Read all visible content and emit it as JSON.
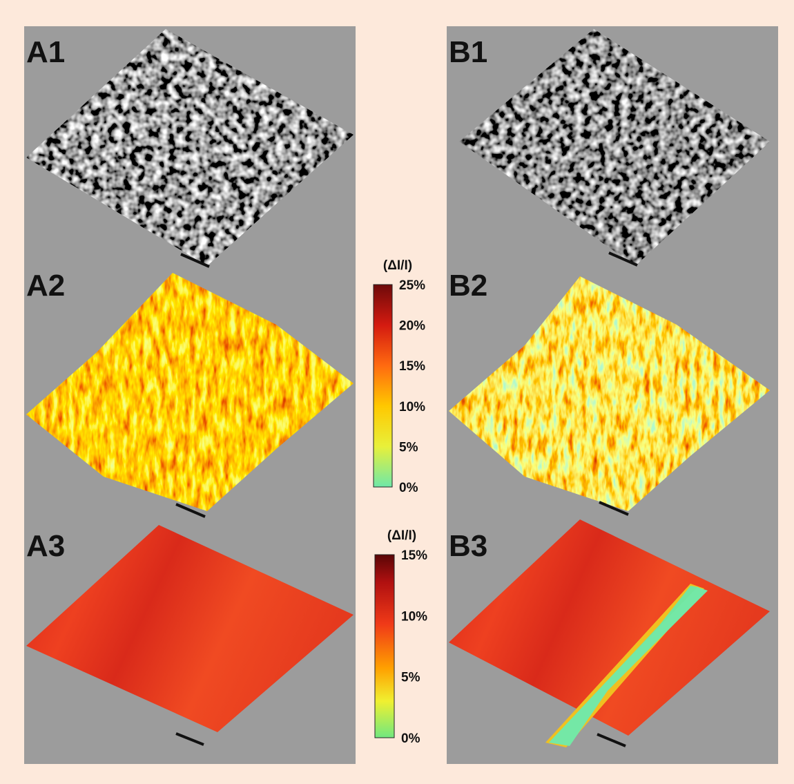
{
  "panels": [
    {
      "label": "A1"
    },
    {
      "label": "A2"
    },
    {
      "label": "A3"
    },
    {
      "label": "B1"
    },
    {
      "label": "B2"
    },
    {
      "label": "B3"
    }
  ],
  "colorbars": [
    {
      "title": "(ΔI/I)",
      "ticks": [
        "25%",
        "20%",
        "15%",
        "10%",
        "5%",
        "0%"
      ]
    },
    {
      "title": "(ΔI/I)",
      "ticks": [
        "15%",
        "10%",
        "5%",
        "0%"
      ]
    }
  ]
}
